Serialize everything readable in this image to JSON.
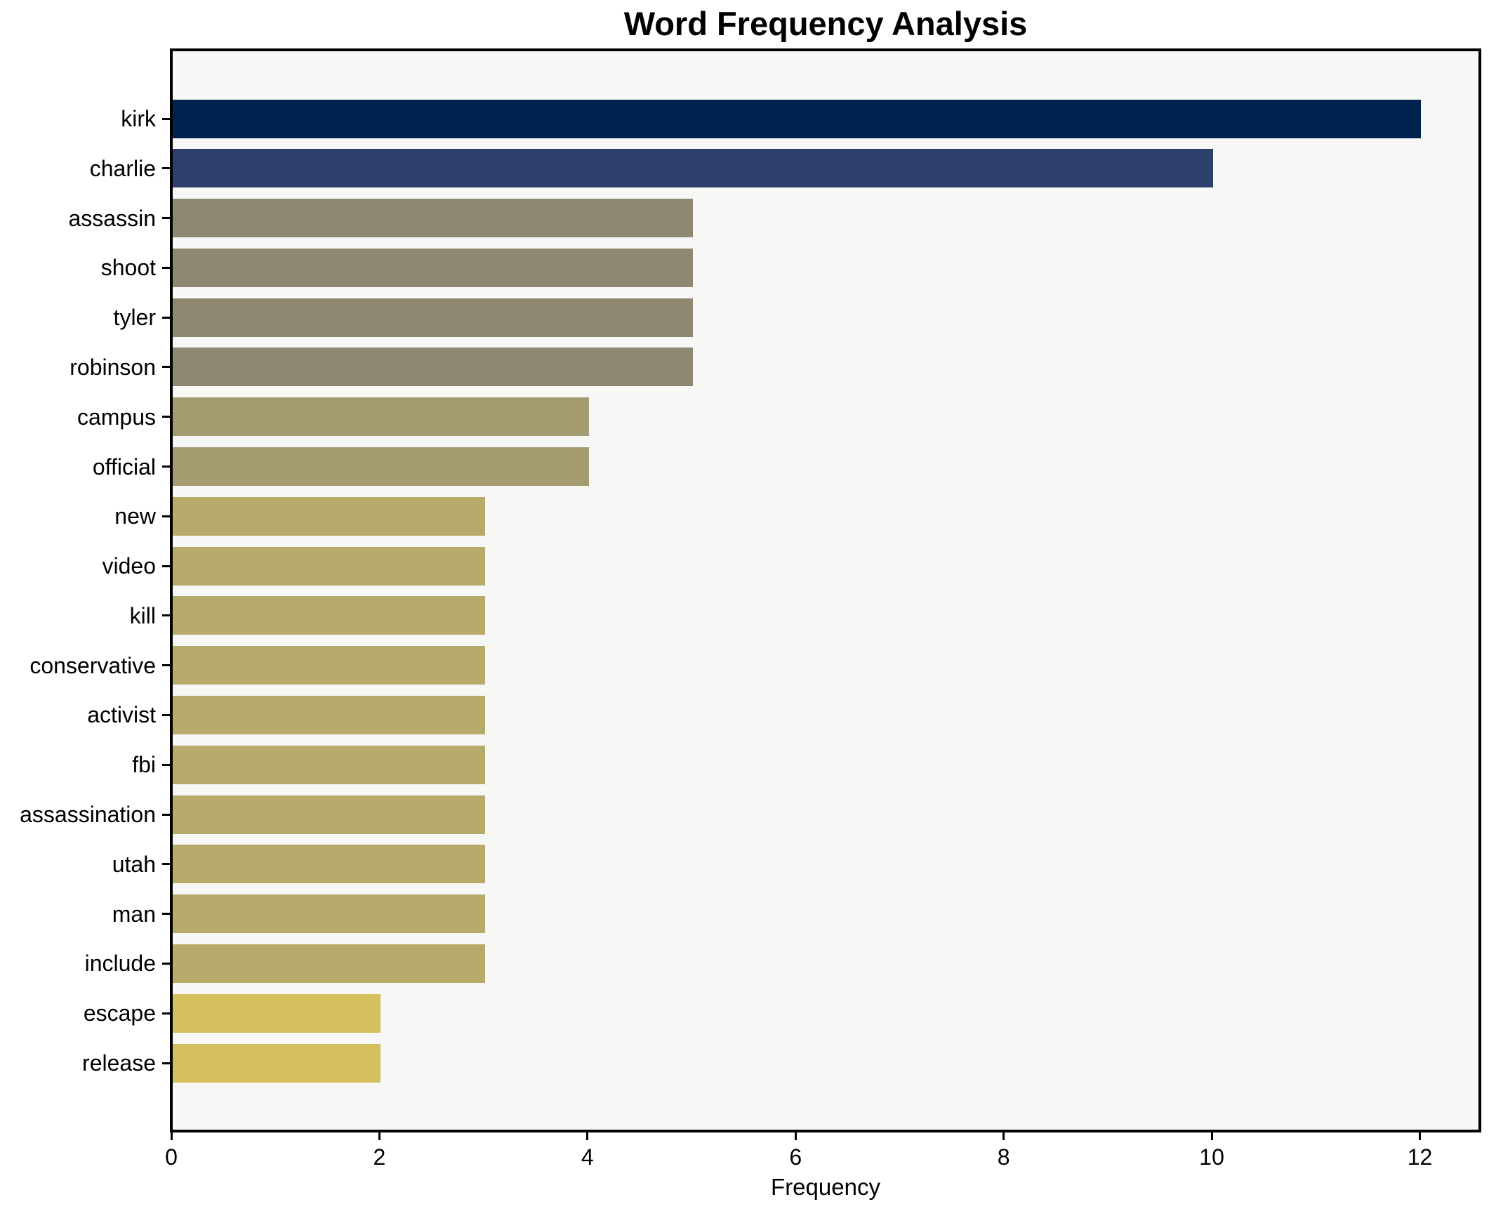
{
  "figure": {
    "title": "Word Frequency Analysis"
  },
  "chart_data": {
    "type": "bar",
    "orientation": "horizontal",
    "title": "Word Frequency Analysis",
    "xlabel": "Frequency",
    "ylabel": "",
    "categories": [
      "kirk",
      "charlie",
      "assassin",
      "shoot",
      "tyler",
      "robinson",
      "campus",
      "official",
      "new",
      "video",
      "kill",
      "conservative",
      "activist",
      "fbi",
      "assassination",
      "utah",
      "man",
      "include",
      "escape",
      "release"
    ],
    "values": [
      12,
      10,
      5,
      5,
      5,
      5,
      4,
      4,
      3,
      3,
      3,
      3,
      3,
      3,
      3,
      3,
      3,
      3,
      2,
      2
    ],
    "bar_colors": [
      "#00224e",
      "#2d406c",
      "#8e8772",
      "#8e8772",
      "#8e8772",
      "#8e8772",
      "#a59b71",
      "#a59b71",
      "#b7ab6b",
      "#b7ab6b",
      "#b7ab6b",
      "#b7ab6b",
      "#b7ab6b",
      "#b7ab6b",
      "#b7ab6b",
      "#b7ab6b",
      "#b7ab6b",
      "#b7ab6b",
      "#d4c05f",
      "#d4c05f"
    ],
    "xticks": [
      0,
      2,
      4,
      6,
      8,
      10,
      12
    ],
    "xlim": [
      0,
      12.55
    ],
    "grid": false,
    "legend": null,
    "plot_background": "#f7f7f5",
    "spine_color": "#000000",
    "text_color": "#000000"
  }
}
